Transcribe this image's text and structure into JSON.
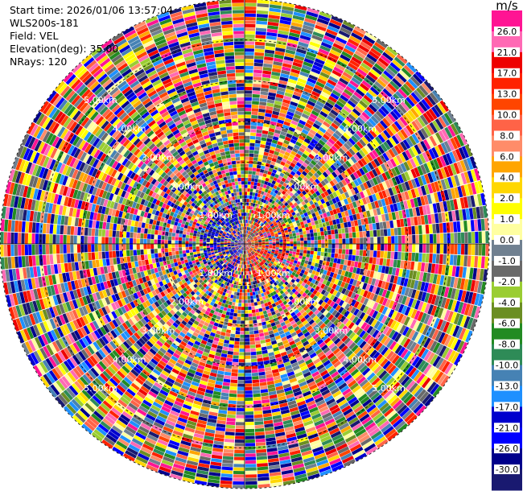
{
  "info": {
    "start_time": "Start time: 2026/01/06 13:57:04",
    "instrument": "WLS200s-181",
    "field": "Field: VEL",
    "elevation": "Elevation(deg): 35.00",
    "nrays": "NRays: 120"
  },
  "chart_data": {
    "type": "heatmap",
    "projection": "polar-ppi",
    "n_rays": 120,
    "max_range_km": 6,
    "range_ring_labels": [
      "1.00km",
      "2.00km",
      "3.00km",
      "4.00km",
      "5.00km"
    ],
    "colorbar": {
      "unit": "m/s",
      "ticks": [
        "26.0",
        "21.0",
        "17.0",
        "13.0",
        "10.0",
        "8.0",
        "6.0",
        "4.0",
        "2.0",
        "1.0",
        "0.0",
        "-1.0",
        "-2.0",
        "-4.0",
        "-6.0",
        "-8.0",
        "-10.0",
        "-13.0",
        "-17.0",
        "-21.0",
        "-26.0",
        "-30.0"
      ],
      "colors": [
        "#ff1493",
        "#ff69b4",
        "#ee0000",
        "#ff2200",
        "#ff4500",
        "#ff6347",
        "#ff8c69",
        "#ffa500",
        "#ffd700",
        "#ffff00",
        "#ffffa0",
        "#708090",
        "#696969",
        "#9acd32",
        "#6b8e23",
        "#228b22",
        "#2e8b57",
        "#4682b4",
        "#1e90ff",
        "#0000cd",
        "#0000ff",
        "#00008b",
        "#191970"
      ]
    }
  }
}
